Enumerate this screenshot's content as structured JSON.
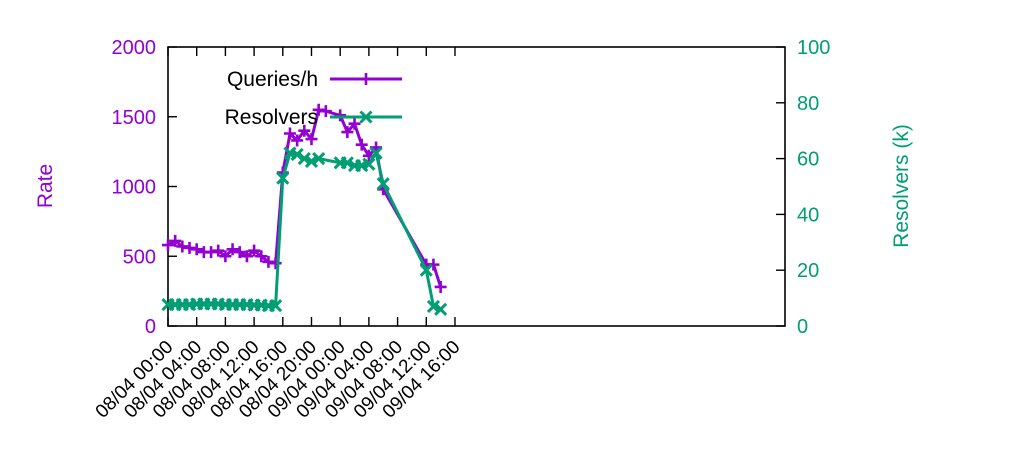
{
  "chart_data": {
    "type": "line",
    "title": "",
    "xlabel": "",
    "ylabel": "Rate",
    "y2label": "Resolvers (k)",
    "ylim": [
      0,
      2000
    ],
    "y2lim": [
      0,
      100
    ],
    "xlim_hours": [
      0,
      86
    ],
    "x_start": "08/04 00:00",
    "x_end": "09/04 16:00",
    "x_ticks": [
      "08/04 00:00",
      "08/04 04:00",
      "08/04 08:00",
      "08/04 12:00",
      "08/04 16:00",
      "08/04 20:00",
      "09/04 00:00",
      "09/04 04:00",
      "09/04 08:00",
      "09/04 12:00",
      "09/04 16:00"
    ],
    "y_ticks": [
      "0",
      "500",
      "1000",
      "1500",
      "2000"
    ],
    "y2_ticks": [
      "0",
      "20",
      "40",
      "60",
      "80",
      "100"
    ],
    "grid": false,
    "legend_position": "top-left",
    "colors": {
      "rate": "#9400d3",
      "resolvers": "#009e73",
      "axis": "#000000"
    },
    "series": [
      {
        "name": "Queries/h",
        "axis": "left",
        "marker": "plus",
        "x": [
          "08/04 00:00",
          "08/04 01:00",
          "08/04 02:00",
          "08/04 03:00",
          "08/04 04:00",
          "08/04 05:00",
          "08/04 06:00",
          "08/04 07:00",
          "08/04 08:00",
          "08/04 09:00",
          "08/04 10:00",
          "08/04 11:00",
          "08/04 12:00",
          "08/04 13:00",
          "08/04 14:00",
          "08/04 15:00",
          "08/04 16:00",
          "08/04 17:00",
          "08/04 18:00",
          "08/04 19:00",
          "08/04 20:00",
          "08/04 21:00",
          "08/04 22:00",
          "09/04 00:00",
          "09/04 01:00",
          "09/04 02:00",
          "09/04 03:00",
          "09/04 04:00",
          "09/04 05:00",
          "09/04 06:00",
          "09/04 12:00",
          "09/04 13:00",
          "09/04 14:00"
        ],
        "values": [
          580,
          610,
          570,
          560,
          550,
          530,
          530,
          540,
          500,
          550,
          530,
          500,
          540,
          500,
          460,
          450,
          1100,
          1380,
          1330,
          1400,
          1340,
          1550,
          1540,
          1510,
          1390,
          1450,
          1300,
          1220,
          1280,
          980,
          440,
          440,
          280
        ]
      },
      {
        "name": "Resolvers",
        "axis": "right",
        "marker": "cross",
        "x": [
          "08/04 00:00",
          "08/04 01:00",
          "08/04 02:00",
          "08/04 03:00",
          "08/04 04:00",
          "08/04 05:00",
          "08/04 06:00",
          "08/04 07:00",
          "08/04 08:00",
          "08/04 09:00",
          "08/04 10:00",
          "08/04 11:00",
          "08/04 12:00",
          "08/04 13:00",
          "08/04 14:00",
          "08/04 15:00",
          "08/04 16:00",
          "08/04 17:00",
          "08/04 18:00",
          "08/04 19:00",
          "08/04 20:00",
          "08/04 21:00",
          "09/04 00:00",
          "09/04 01:00",
          "09/04 02:00",
          "09/04 03:00",
          "09/04 04:00",
          "09/04 05:00",
          "09/04 06:00",
          "09/04 12:00",
          "09/04 13:00",
          "09/04 14:00"
        ],
        "values": [
          7.7,
          7.7,
          7.7,
          7.7,
          7.9,
          7.9,
          7.9,
          7.9,
          7.7,
          7.7,
          7.7,
          7.7,
          7.5,
          7.5,
          7.3,
          7.3,
          53,
          62,
          61.5,
          60,
          59,
          60,
          58.5,
          58.5,
          57.5,
          57.5,
          58,
          62,
          51,
          20,
          7,
          6
        ]
      }
    ]
  }
}
